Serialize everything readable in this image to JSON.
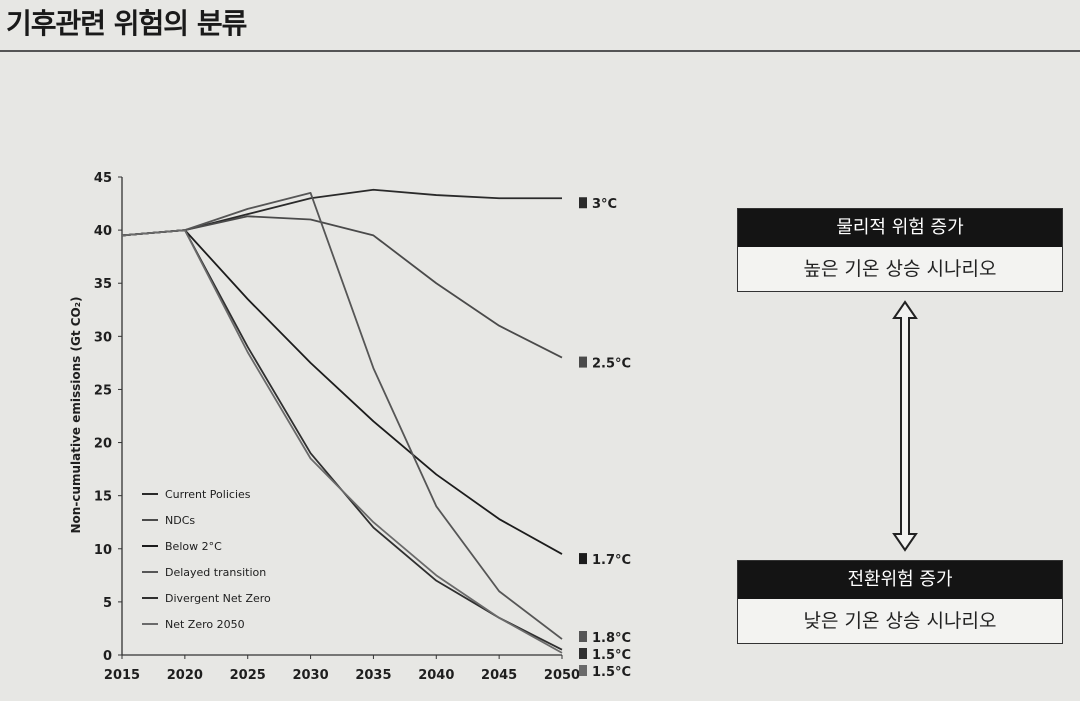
{
  "page": {
    "title": "기후관련 위험의 분류"
  },
  "boxes": {
    "top": {
      "header": "물리적 위험 증가",
      "body": "높은 기온 상승 시나리오"
    },
    "bottom": {
      "header": "전환위험 증가",
      "body": "낮은 기온 상승 시나리오"
    }
  },
  "chart_data": {
    "type": "line",
    "ylabel": "Non-cumulative emissions (Gt CO₂)",
    "xlabel": "",
    "x": [
      2015,
      2020,
      2025,
      2030,
      2035,
      2040,
      2045,
      2050
    ],
    "xlim": [
      2015,
      2050
    ],
    "ylim": [
      0,
      45
    ],
    "yticks": [
      0,
      5,
      10,
      15,
      20,
      25,
      30,
      35,
      40,
      45
    ],
    "series": [
      {
        "name": "Current Policies",
        "values": [
          39.5,
          40,
          41.5,
          43,
          43.8,
          43.3,
          43,
          43
        ],
        "end_label": "3°C",
        "color": "#2a2a2a"
      },
      {
        "name": "NDCs",
        "values": [
          39.5,
          40,
          41.3,
          41,
          39.5,
          35,
          31,
          28
        ],
        "end_label": "2.5°C",
        "color": "#4a4a4a"
      },
      {
        "name": "Below 2°C",
        "values": [
          39.5,
          40,
          33.5,
          27.5,
          22,
          17,
          12.8,
          9.5
        ],
        "end_label": "1.7°C",
        "color": "#1c1c1c"
      },
      {
        "name": "Delayed transition",
        "values": [
          39.5,
          40,
          42,
          43.5,
          27,
          14,
          6,
          1.5
        ],
        "end_label": "1.8°C",
        "color": "#565656"
      },
      {
        "name": "Divergent Net Zero",
        "values": [
          39.5,
          40,
          29,
          19,
          12,
          7,
          3.5,
          0.5
        ],
        "end_label": "1.5°C",
        "color": "#2f2f2f"
      },
      {
        "name": "Net Zero 2050",
        "values": [
          39.5,
          40,
          28.5,
          18.5,
          12.5,
          7.5,
          3.5,
          0.2
        ],
        "end_label": "1.5°C",
        "color": "#6a6a6a"
      }
    ],
    "legend_position": "bottom-left",
    "grid": false
  }
}
